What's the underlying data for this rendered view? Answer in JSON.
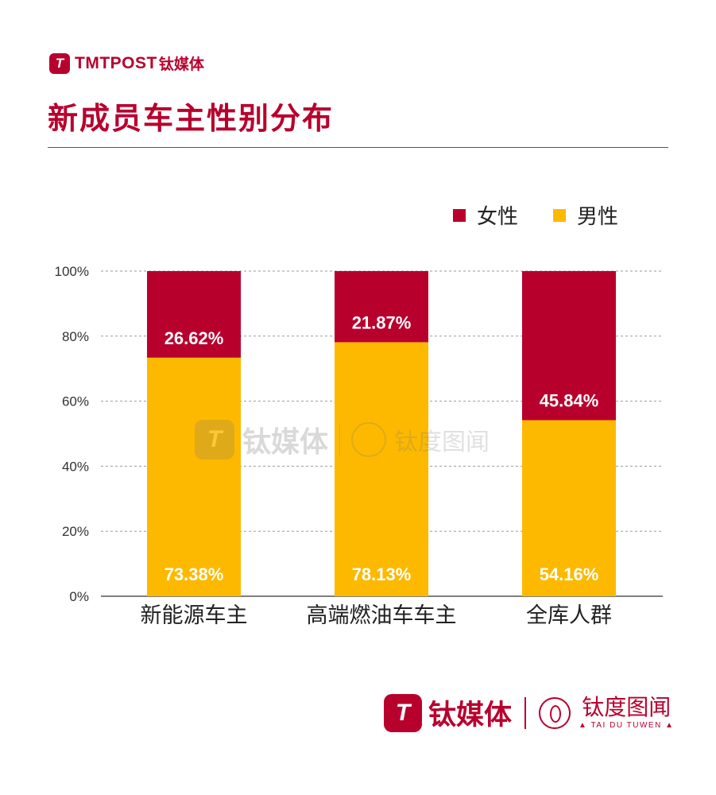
{
  "brand": {
    "logo_letter": "T",
    "name_en": "TMTPOST",
    "name_cn": "钛媒体",
    "partner_cn": "钛度图闻",
    "partner_en": "▲ TAI DU TUWEN ▲"
  },
  "title": "新成员车主性别分布",
  "colors": {
    "female": "#b8002d",
    "male": "#fdb900",
    "brand": "#b8002d"
  },
  "legend": [
    {
      "label": "女性",
      "color": "#b8002d"
    },
    {
      "label": "男性",
      "color": "#fdb900"
    }
  ],
  "chart_data": {
    "type": "bar",
    "stacked": true,
    "categories": [
      "新能源车主",
      "高端燃油车车主",
      "全库人群"
    ],
    "series": [
      {
        "name": "男性",
        "values": [
          73.38,
          78.13,
          54.16
        ],
        "labels": [
          "73.38%",
          "78.13%",
          "54.16%"
        ],
        "color": "#fdb900"
      },
      {
        "name": "女性",
        "values": [
          26.62,
          21.87,
          45.84
        ],
        "labels": [
          "26.62%",
          "21.87%",
          "45.84%"
        ],
        "color": "#b8002d"
      }
    ],
    "ylim": [
      0,
      100
    ],
    "yticks": [
      "0%",
      "20%",
      "40%",
      "60%",
      "80%",
      "100%"
    ],
    "ytick_values": [
      0,
      20,
      40,
      60,
      80,
      100
    ],
    "grid": true,
    "legend_position": "top-right"
  }
}
